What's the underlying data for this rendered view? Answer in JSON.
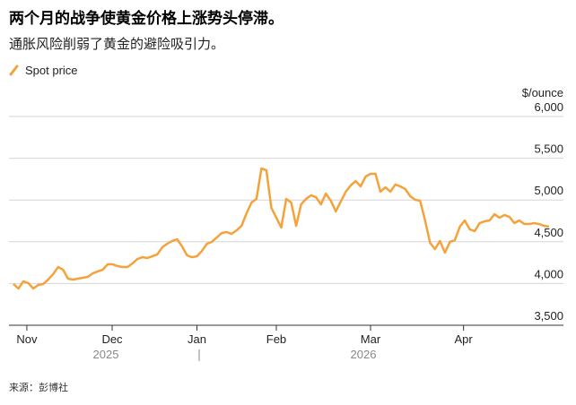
{
  "chart_data": {
    "type": "line",
    "title": "两个月的战争使黄金价格上涨势头停滞。",
    "subtitle": "通胀风险削弱了黄金的避险吸引力。",
    "y_axis_label": "$/ounce",
    "source": "来源：彭博社",
    "series": [
      {
        "name": "Spot price",
        "color": "#f5a23a",
        "values": [
          3994,
          3940,
          4026,
          4004,
          3940,
          3983,
          3994,
          4047,
          4112,
          4197,
          4165,
          4058,
          4047,
          4058,
          4069,
          4079,
          4122,
          4144,
          4165,
          4230,
          4230,
          4208,
          4197,
          4197,
          4240,
          4294,
          4315,
          4305,
          4326,
          4348,
          4433,
          4476,
          4509,
          4530,
          4444,
          4337,
          4315,
          4326,
          4390,
          4476,
          4498,
          4552,
          4605,
          4616,
          4594,
          4637,
          4691,
          4841,
          4970,
          5013,
          5378,
          5356,
          4906,
          4788,
          4670,
          5013,
          4970,
          4691,
          4948,
          5013,
          5056,
          5034,
          4948,
          5077,
          4991,
          4863,
          4981,
          5099,
          5174,
          5227,
          5163,
          5281,
          5313,
          5313,
          5099,
          5152,
          5099,
          5185,
          5163,
          5131,
          5045,
          5002,
          4991,
          4755,
          4487,
          4412,
          4509,
          4369,
          4498,
          4519,
          4680,
          4755,
          4648,
          4627,
          4723,
          4745,
          4755,
          4830,
          4788,
          4820,
          4798,
          4723,
          4755,
          4712,
          4712,
          4723,
          4712,
          4691,
          4680
        ]
      }
    ],
    "xlim": [
      0,
      108
    ],
    "xticks": [
      {
        "value": 2.7,
        "label": "Nov"
      },
      {
        "value": 19.9,
        "label": "Dec"
      },
      {
        "value": 37,
        "label": "Jan"
      },
      {
        "value": 53,
        "label": "Feb"
      },
      {
        "value": 72,
        "label": "Mar"
      },
      {
        "value": 90.75,
        "label": "Apr"
      }
    ],
    "x_group_labels": [
      "2025",
      "2026"
    ],
    "ylim": [
      3500,
      6000
    ],
    "yticks": [
      {
        "value": 3500,
        "label": "3,500"
      },
      {
        "value": 4000,
        "label": "4,000"
      },
      {
        "value": 4500,
        "label": "4,500"
      },
      {
        "value": 5000,
        "label": "5,000"
      },
      {
        "value": 5500,
        "label": "5,500"
      },
      {
        "value": 6000,
        "label": "6,000"
      }
    ],
    "grid": true
  }
}
